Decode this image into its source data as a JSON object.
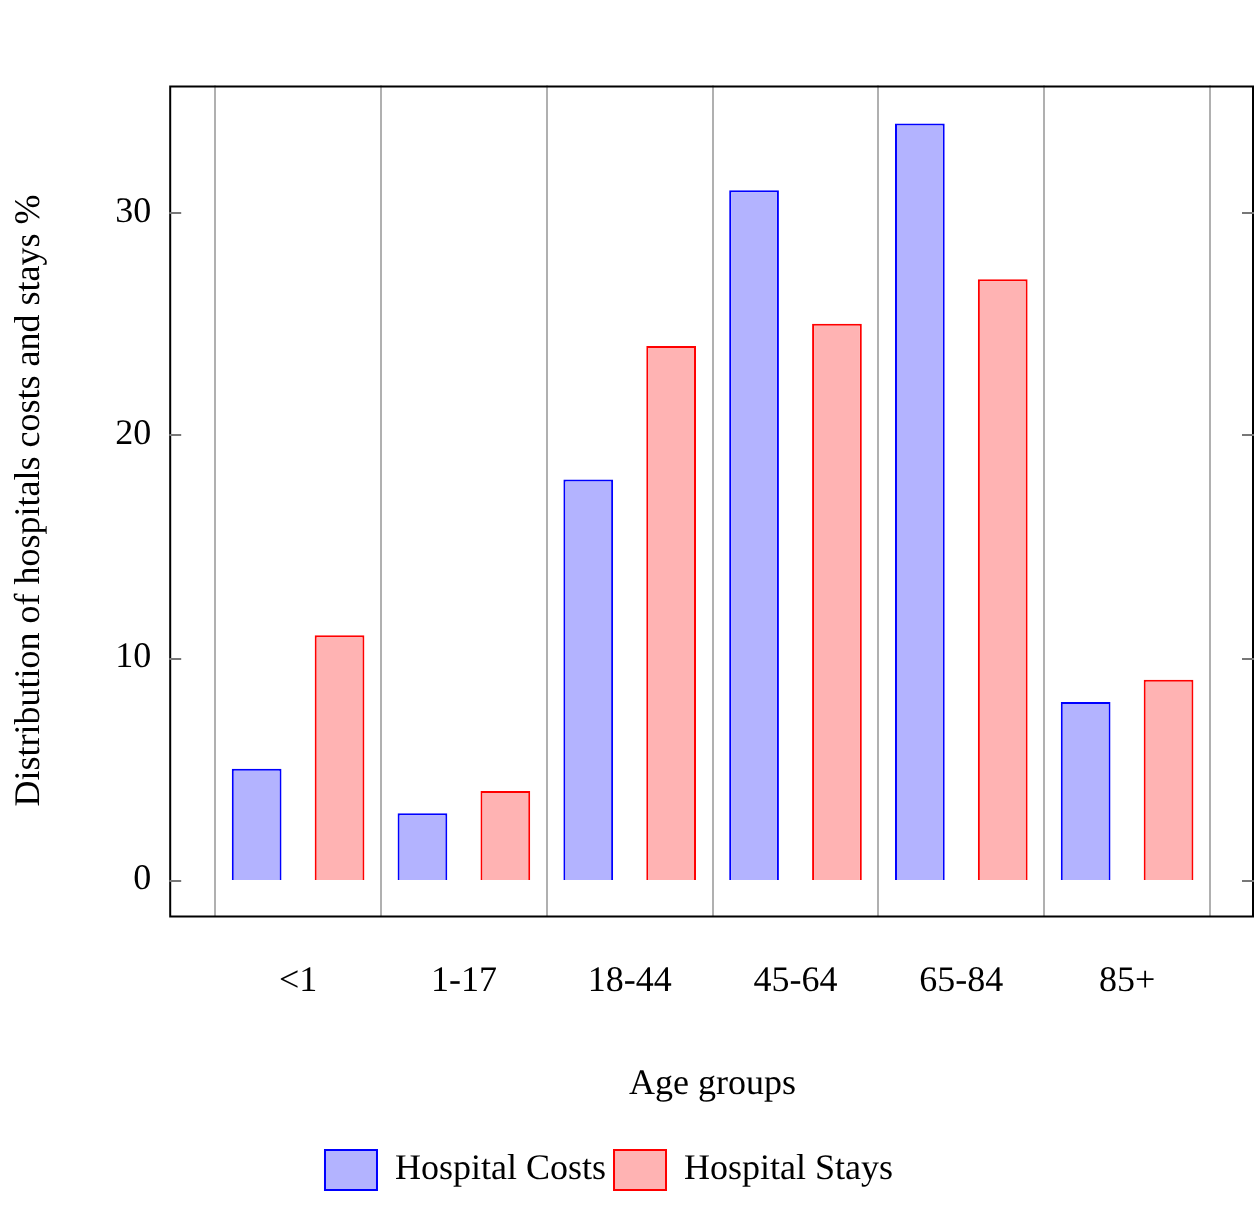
{
  "chart_data": {
    "type": "bar",
    "xlabel": "Age groups",
    "ylabel": "Distribution of hospitals costs and stays %",
    "categories": [
      "<1",
      "1-17",
      "18-44",
      "45-64",
      "65-84",
      "85+"
    ],
    "series": [
      {
        "name": "Hospital Costs",
        "color": "#b3b3ff",
        "values": [
          5,
          3,
          18,
          31,
          34,
          8
        ]
      },
      {
        "name": "Hospital Stays",
        "color": "#ffb3b3",
        "values": [
          11,
          4,
          24,
          25,
          27,
          9
        ]
      }
    ],
    "ylim": [
      -1.6,
      35.7
    ],
    "yticks": [
      0,
      10,
      20,
      30
    ],
    "grid": "x",
    "legend": "bottom"
  }
}
